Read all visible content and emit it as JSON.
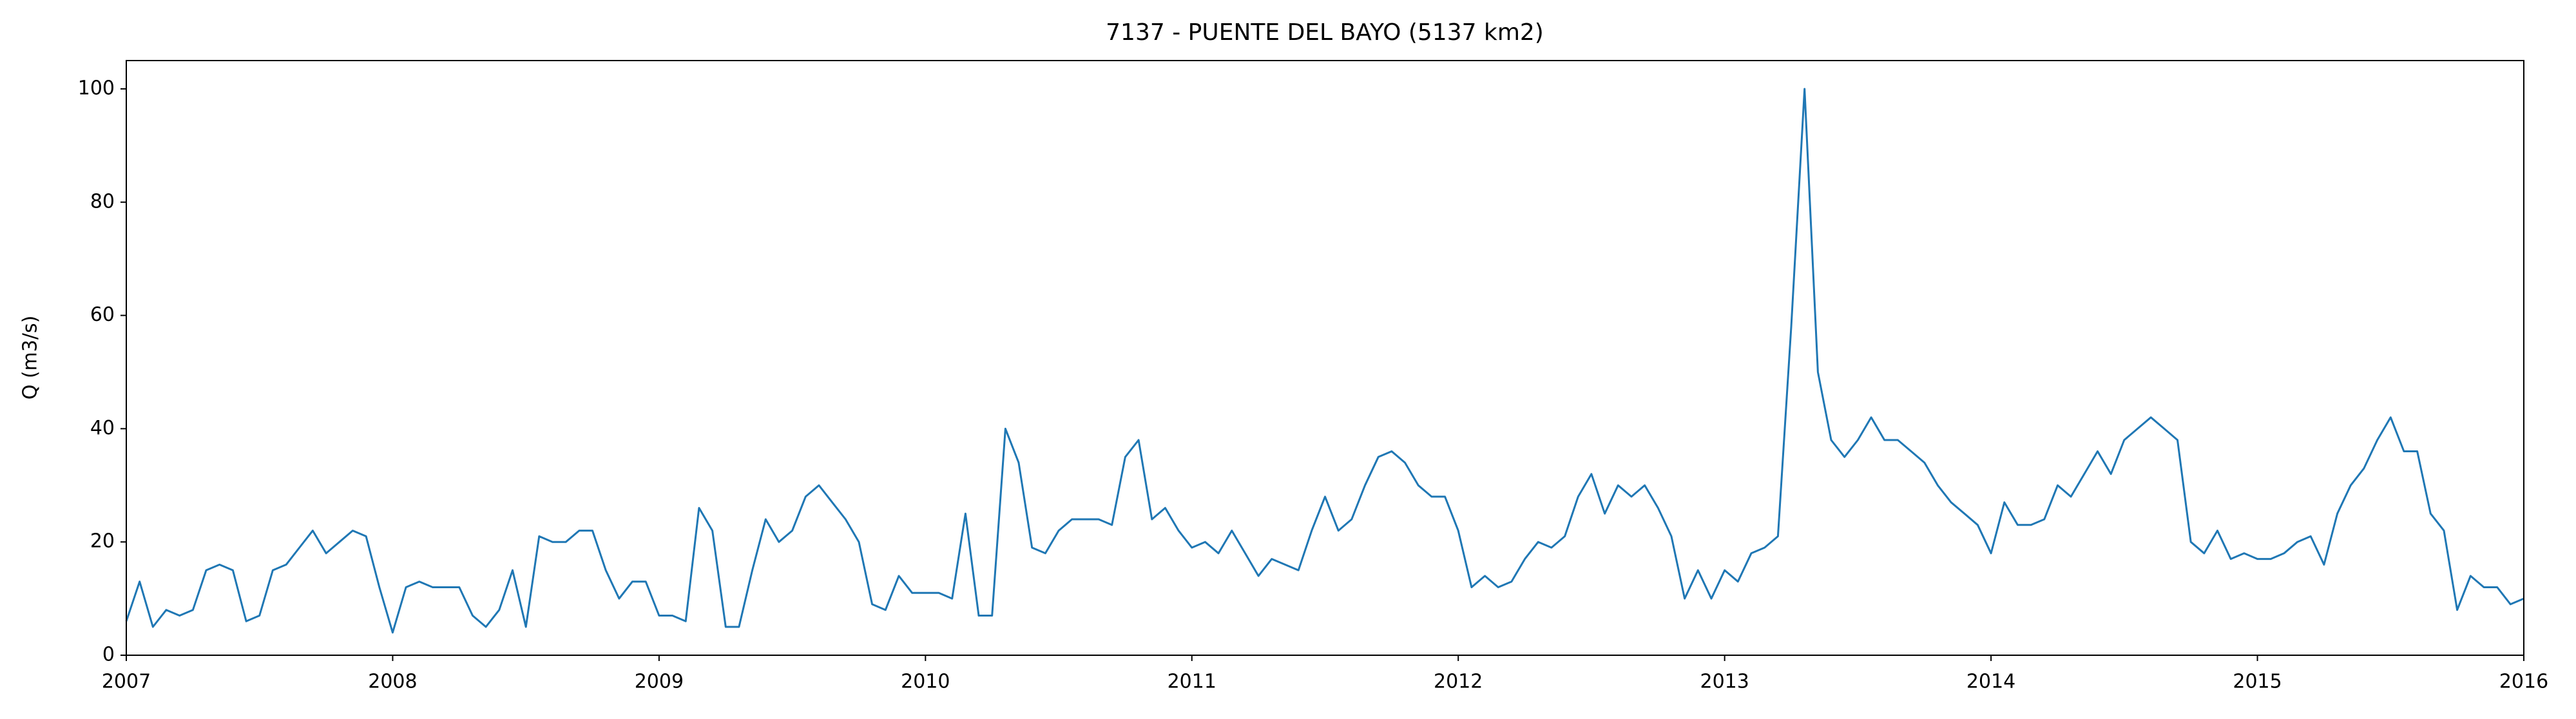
{
  "chart_data": {
    "type": "line",
    "title": "7137 - PUENTE DEL BAYO (5137 km2)",
    "y_label": "Q (m3/s)",
    "color": "#1f77b4",
    "x": [
      2007,
      2007.05,
      2007.1,
      2007.15,
      2007.2,
      2007.25,
      2007.3,
      2007.35,
      2007.4,
      2007.45,
      2007.5,
      2007.55,
      2007.6,
      2007.65,
      2007.7,
      2007.75,
      2007.8,
      2007.85,
      2007.9,
      2007.95,
      2008,
      2008.05,
      2008.1,
      2008.15,
      2008.2,
      2008.25,
      2008.3,
      2008.35,
      2008.4,
      2008.45,
      2008.5,
      2008.55,
      2008.6,
      2008.65,
      2008.7,
      2008.75,
      2008.8,
      2008.85,
      2008.9,
      2008.95,
      2009,
      2009.05,
      2009.1,
      2009.15,
      2009.2,
      2009.25,
      2009.3,
      2009.35,
      2009.4,
      2009.45,
      2009.5,
      2009.55,
      2009.6,
      2009.65,
      2009.7,
      2009.75,
      2009.8,
      2009.85,
      2009.9,
      2009.95,
      2010,
      2010.05,
      2010.1,
      2010.15,
      2010.2,
      2010.25,
      2010.3,
      2010.35,
      2010.4,
      2010.45,
      2010.5,
      2010.55,
      2010.6,
      2010.65,
      2010.7,
      2010.75,
      2010.8,
      2010.85,
      2010.9,
      2010.95,
      2011,
      2011.05,
      2011.1,
      2011.15,
      2011.2,
      2011.25,
      2011.3,
      2011.35,
      2011.4,
      2011.45,
      2011.5,
      2011.55,
      2011.6,
      2011.65,
      2011.7,
      2011.75,
      2011.8,
      2011.85,
      2011.9,
      2011.95,
      2012,
      2012.05,
      2012.1,
      2012.15,
      2012.2,
      2012.25,
      2012.3,
      2012.35,
      2012.4,
      2012.45,
      2012.5,
      2012.55,
      2012.6,
      2012.65,
      2012.7,
      2012.75,
      2012.8,
      2012.85,
      2012.9,
      2012.95,
      2013,
      2013.05,
      2013.1,
      2013.15,
      2013.2,
      2013.25,
      2013.3,
      2013.35,
      2013.4,
      2013.45,
      2013.5,
      2013.55,
      2013.6,
      2013.65,
      2013.7,
      2013.75,
      2013.8,
      2013.85,
      2013.9,
      2013.95,
      2014,
      2014.05,
      2014.1,
      2014.15,
      2014.2,
      2014.25,
      2014.3,
      2014.35,
      2014.4,
      2014.45,
      2014.5,
      2014.55,
      2014.6,
      2014.65,
      2014.7,
      2014.75,
      2014.8,
      2014.85,
      2014.9,
      2014.95,
      2015,
      2015.05,
      2015.1,
      2015.15,
      2015.2,
      2015.25,
      2015.3,
      2015.35,
      2015.4,
      2015.45,
      2015.5,
      2015.55,
      2015.6,
      2015.65,
      2015.7,
      2015.75,
      2015.8,
      2015.85,
      2015.9,
      2015.95,
      2016
    ],
    "values": [
      6,
      13,
      5,
      8,
      7,
      8,
      15,
      16,
      15,
      6,
      7,
      15,
      16,
      19,
      22,
      18,
      20,
      22,
      21,
      12,
      4,
      12,
      13,
      12,
      12,
      12,
      7,
      5,
      8,
      15,
      5,
      21,
      20,
      20,
      22,
      22,
      15,
      10,
      13,
      13,
      7,
      7,
      6,
      26,
      22,
      5,
      5,
      15,
      24,
      20,
      22,
      28,
      30,
      27,
      24,
      20,
      9,
      8,
      14,
      11,
      11,
      11,
      10,
      25,
      7,
      7,
      40,
      34,
      19,
      18,
      22,
      24,
      24,
      24,
      23,
      35,
      38,
      24,
      26,
      22,
      19,
      20,
      18,
      22,
      18,
      14,
      17,
      16,
      15,
      22,
      28,
      22,
      24,
      30,
      35,
      36,
      34,
      30,
      28,
      28,
      22,
      12,
      14,
      12,
      13,
      17,
      20,
      19,
      21,
      28,
      32,
      25,
      30,
      28,
      30,
      26,
      21,
      10,
      15,
      10,
      15,
      13,
      18,
      19,
      21,
      58,
      100,
      50,
      38,
      35,
      38,
      42,
      38,
      38,
      36,
      34,
      30,
      27,
      25,
      23,
      18,
      27,
      23,
      23,
      24,
      30,
      28,
      32,
      36,
      32,
      38,
      40,
      42,
      40,
      38,
      20,
      18,
      22,
      17,
      18,
      17,
      17,
      18,
      20,
      21,
      16,
      25,
      30,
      33,
      38,
      42,
      36,
      36,
      25,
      22,
      8,
      14,
      12,
      12,
      9,
      10
    ],
    "xlim": [
      2007,
      2016
    ],
    "xticks": [
      2007,
      2008,
      2009,
      2010,
      2011,
      2012,
      2013,
      2014,
      2015,
      2016
    ],
    "ylim": [
      0,
      105
    ],
    "yticks": [
      0,
      20,
      40,
      60,
      80,
      100
    ]
  }
}
